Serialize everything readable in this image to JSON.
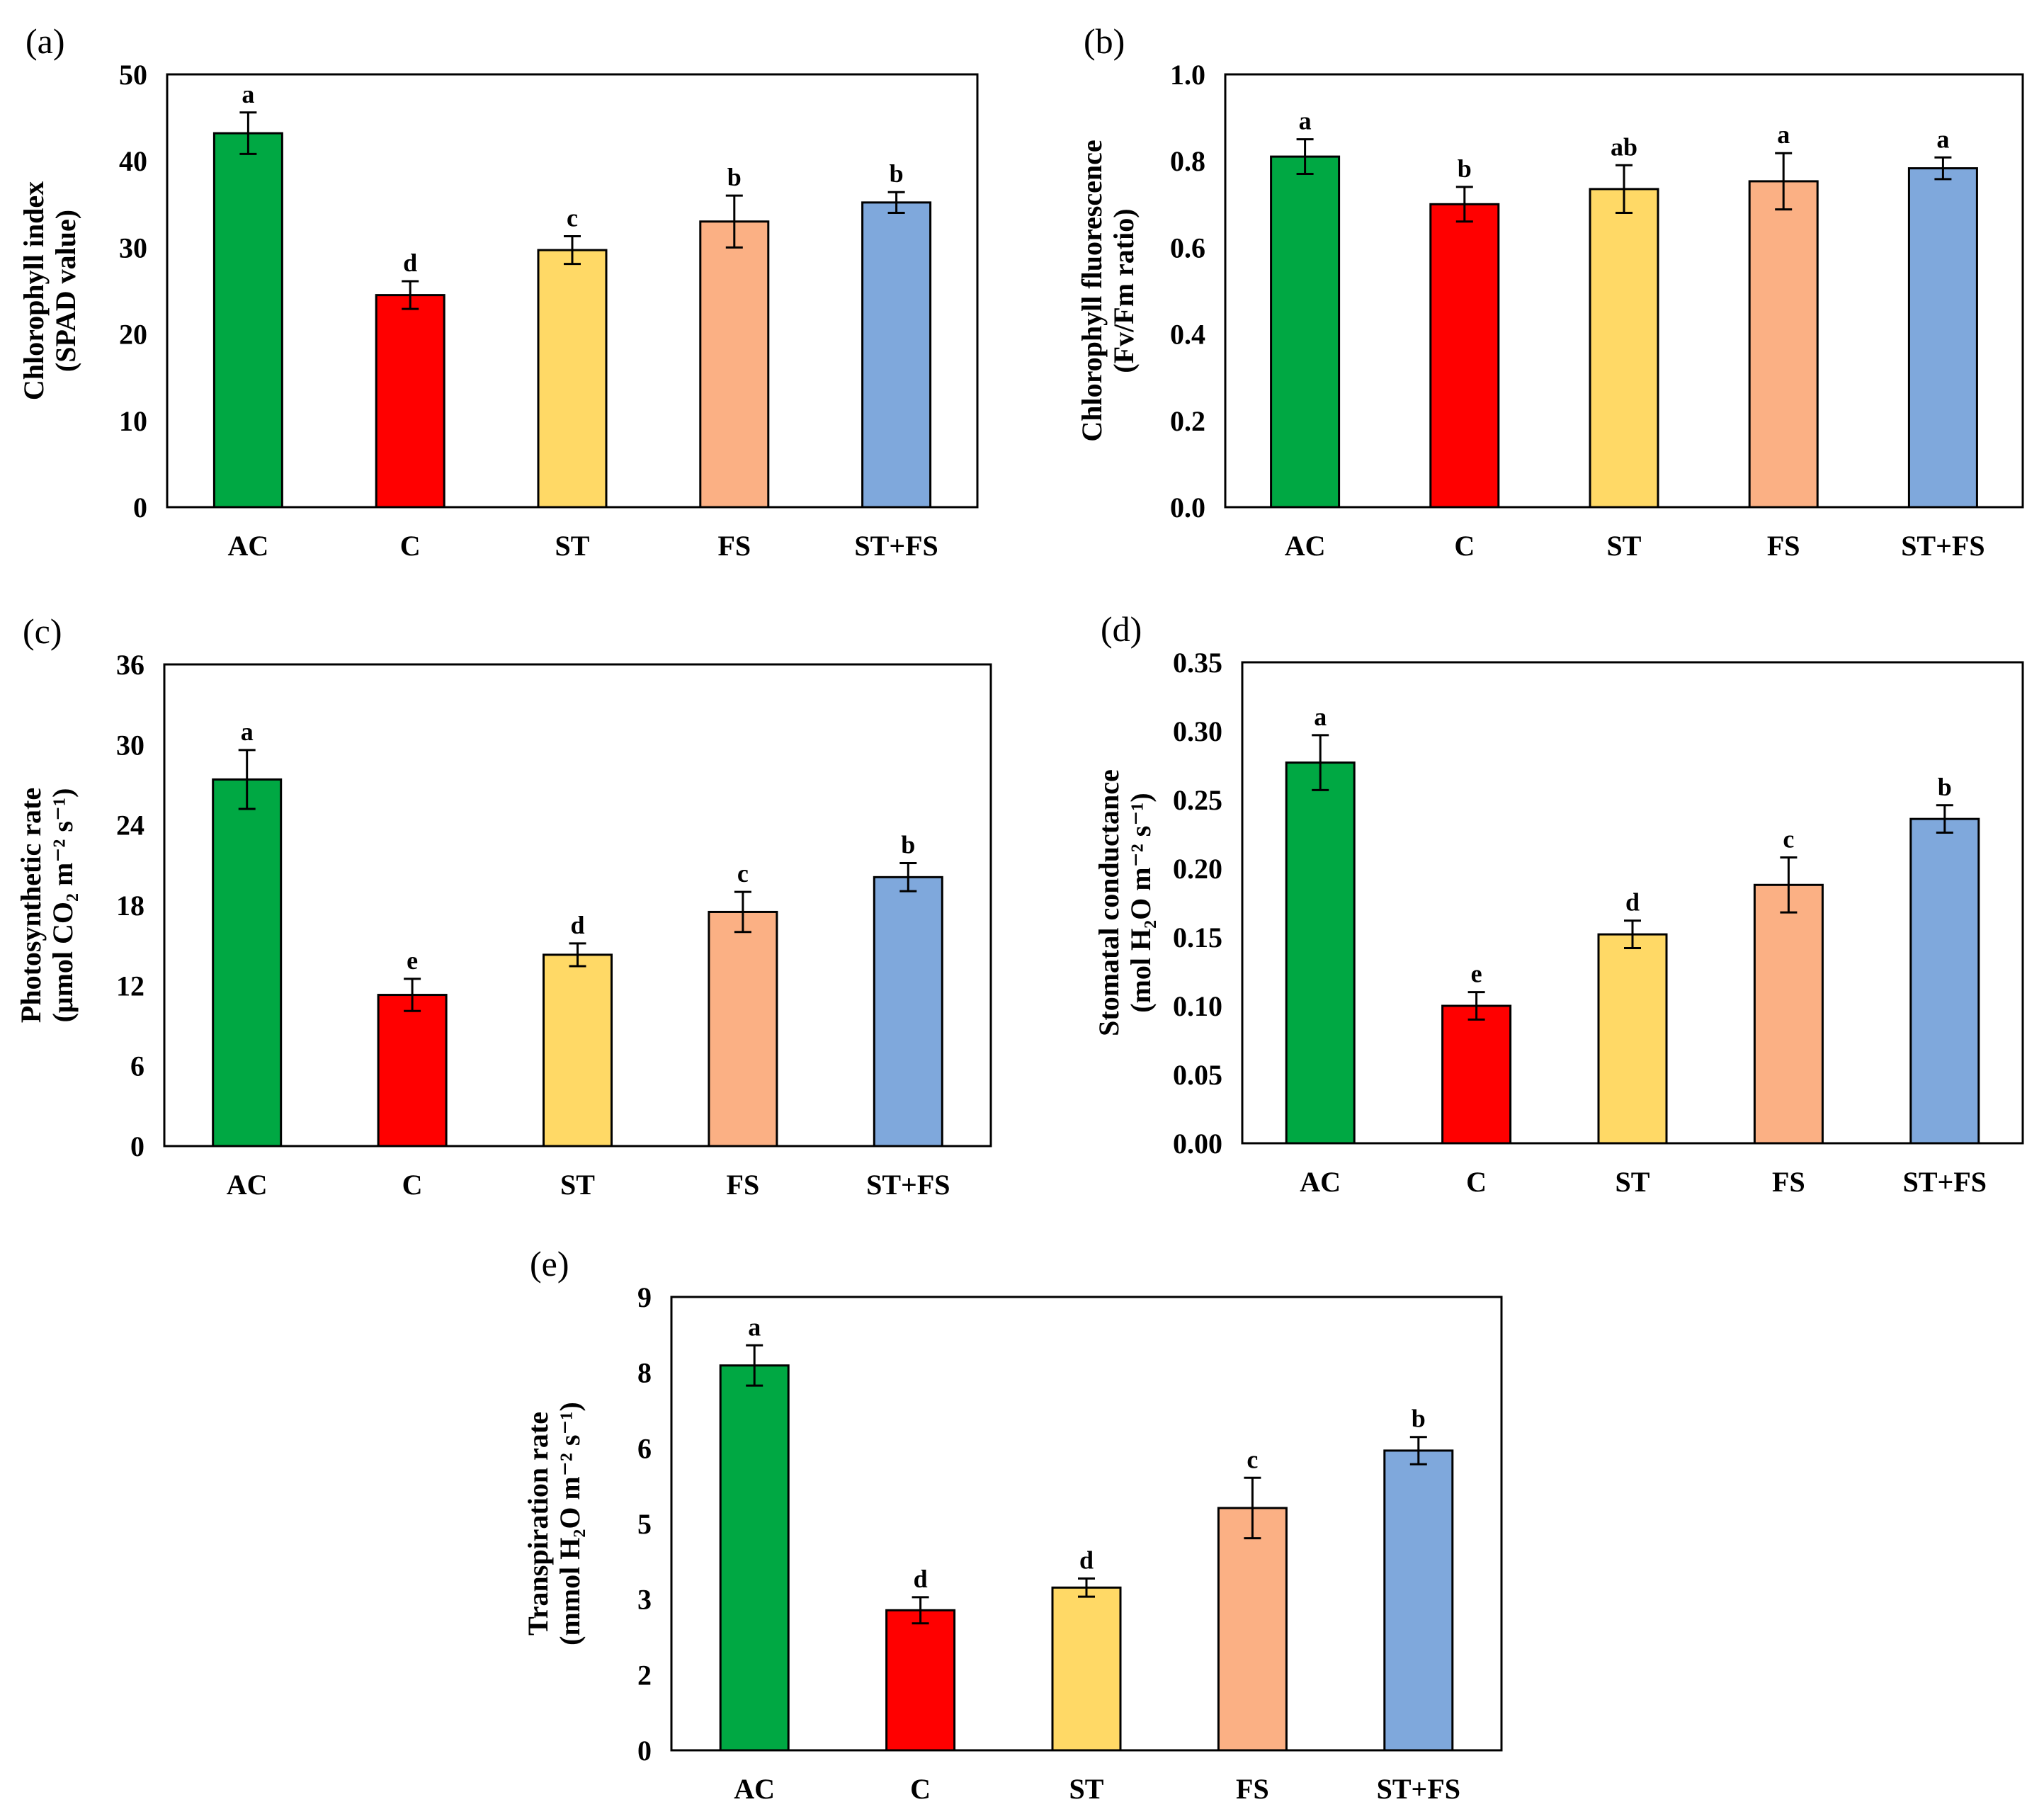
{
  "colors": {
    "AC": "#00a843",
    "C": "#ff0000",
    "ST": "#ffd966",
    "FS": "#fbb084",
    "ST+FS": "#7fa8dc"
  },
  "chart_data": [
    {
      "panel": "(a)",
      "type": "bar",
      "categories": [
        "AC",
        "C",
        "ST",
        "FS",
        "ST+FS"
      ],
      "values": [
        43.2,
        24.5,
        29.7,
        33.0,
        35.2
      ],
      "errors": [
        2.4,
        1.6,
        1.6,
        3.0,
        1.2
      ],
      "letters": [
        "a",
        "d",
        "c",
        "b",
        "b"
      ],
      "ylabel": [
        "Chlorophyll  index",
        "(SPAD value)"
      ],
      "ylim": [
        0,
        50
      ],
      "ticks": [
        "0",
        "10",
        "20",
        "30",
        "40",
        "50"
      ]
    },
    {
      "panel": "(b)",
      "type": "bar",
      "categories": [
        "AC",
        "C",
        "ST",
        "FS",
        "ST+FS"
      ],
      "values": [
        0.81,
        0.7,
        0.735,
        0.753,
        0.783
      ],
      "errors": [
        0.04,
        0.04,
        0.055,
        0.065,
        0.025
      ],
      "letters": [
        "a",
        "b",
        "ab",
        "a",
        "a"
      ],
      "ylabel": [
        "Chlorophyll  fluorescence",
        "(Fv/Fm  ratio)"
      ],
      "ylim": [
        0,
        1.0
      ],
      "ticks": [
        "0.0",
        "0.2",
        "0.4",
        "0.6",
        "0.8",
        "1.0"
      ]
    },
    {
      "panel": "(c)",
      "type": "bar",
      "categories": [
        "AC",
        "C",
        "ST",
        "FS",
        "ST+FS"
      ],
      "values": [
        27.4,
        11.3,
        14.3,
        17.5,
        20.1
      ],
      "errors": [
        2.2,
        1.2,
        0.85,
        1.5,
        1.05
      ],
      "letters": [
        "a",
        "e",
        "d",
        "c",
        "b"
      ],
      "ylabel": [
        "Photosynthetic  rate",
        "(μmol  CO₂  m⁻²  s⁻¹)"
      ],
      "ylim": [
        0,
        36
      ],
      "ticks": [
        "0",
        "6",
        "12",
        "18",
        "24",
        "30",
        "36"
      ]
    },
    {
      "panel": "(d)",
      "type": "bar",
      "categories": [
        "AC",
        "C",
        "ST",
        "FS",
        "ST+FS"
      ],
      "values": [
        0.277,
        0.1,
        0.152,
        0.188,
        0.236
      ],
      "errors": [
        0.02,
        0.01,
        0.01,
        0.02,
        0.01
      ],
      "letters": [
        "a",
        "e",
        "d",
        "c",
        "b"
      ],
      "ylabel": [
        "Stomatal  conductance",
        "(mol  H₂O  m⁻²  s⁻¹)"
      ],
      "ylim": [
        0,
        0.35
      ],
      "ticks": [
        "0.00",
        "0.05",
        "0.10",
        "0.15",
        "0.20",
        "0.25",
        "0.30",
        "0.35"
      ]
    },
    {
      "panel": "(e)",
      "type": "bar",
      "categories": [
        "AC",
        "C",
        "ST",
        "FS",
        "ST+FS"
      ],
      "values": [
        7.64,
        2.78,
        3.23,
        4.81,
        5.95
      ],
      "errors": [
        0.4,
        0.26,
        0.18,
        0.6,
        0.27
      ],
      "letters": [
        "a",
        "d",
        "d",
        "c",
        "b"
      ],
      "ylabel": [
        "Transpiration  rate",
        "(mmol  H₂O  m⁻²  s⁻¹)"
      ],
      "ylim": [
        0,
        9
      ],
      "ticks": [
        "0",
        "2",
        "3",
        "5",
        "6",
        "8",
        "9"
      ]
    }
  ]
}
